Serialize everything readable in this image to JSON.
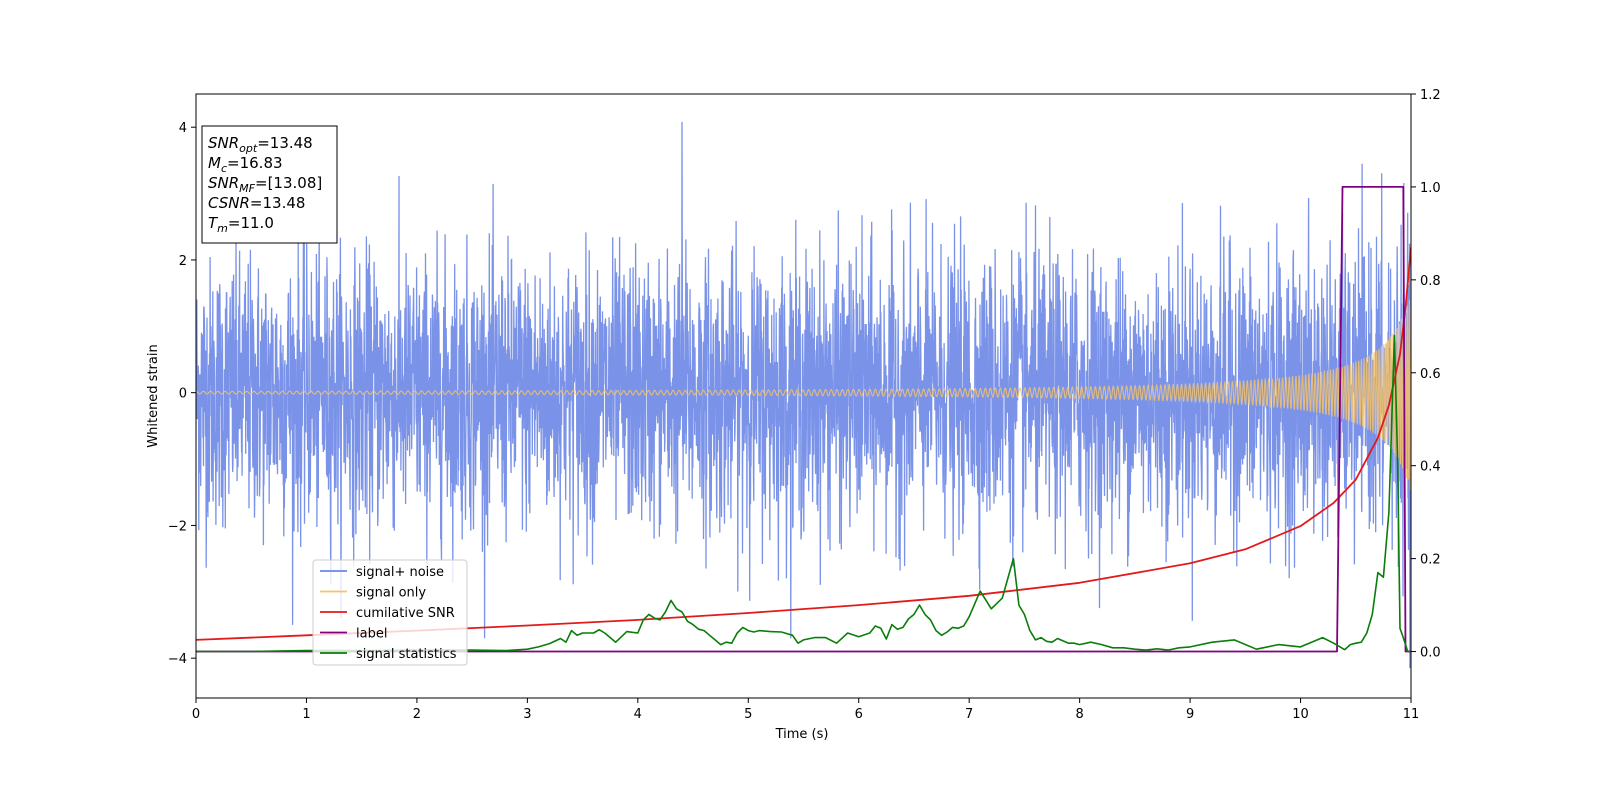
{
  "chart_data": {
    "type": "line",
    "xlabel": "Time (s)",
    "ylabel": "Whitened strain",
    "xlim": [
      0,
      11
    ],
    "ylim_left": [
      -4.6,
      4.5
    ],
    "ylim_right": [
      -0.1,
      1.2
    ],
    "x_ticks": [
      "0",
      "1",
      "2",
      "3",
      "4",
      "5",
      "6",
      "7",
      "8",
      "9",
      "10",
      "11"
    ],
    "y_ticks_left": [
      "−4",
      "−2",
      "0",
      "2",
      "4"
    ],
    "y_ticks_left_values": [
      -4,
      -2,
      0,
      2,
      4
    ],
    "y_ticks_right": [
      "0.0",
      "0.2",
      "0.4",
      "0.6",
      "0.8",
      "1.0",
      "1.2"
    ],
    "y_ticks_right_values": [
      0.0,
      0.2,
      0.4,
      0.6,
      0.8,
      1.0,
      1.2
    ],
    "legend_position": "lower-left",
    "series": [
      {
        "name": "signal+ noise",
        "color": "#6b87e6",
        "axis": "left",
        "description_values": {
          "sigma": 1.0,
          "tmax": 11.0,
          "peaks": [
            [
              4.4,
              4.08
            ],
            [
              10.95,
              3.65
            ],
            [
              10.99,
              -4.15
            ]
          ]
        }
      },
      {
        "name": "signal only",
        "color": "#f6c36a",
        "axis": "left",
        "chirp": {
          "start_amplitude": 0.02,
          "end_amplitude": 1.5,
          "merger_time": 11.0
        }
      },
      {
        "name": "cumilative SNR",
        "color": "#e11b1b",
        "axis": "right",
        "x": [
          0,
          1,
          2,
          3,
          4,
          5,
          6,
          7,
          8,
          9,
          9.5,
          10,
          10.3,
          10.5,
          10.7,
          10.8,
          10.9,
          10.95,
          11.0
        ],
        "y": [
          0.025,
          0.035,
          0.045,
          0.056,
          0.068,
          0.083,
          0.1,
          0.12,
          0.148,
          0.19,
          0.22,
          0.27,
          0.32,
          0.37,
          0.46,
          0.53,
          0.64,
          0.74,
          0.87
        ]
      },
      {
        "name": "label",
        "color": "#800080",
        "axis": "right",
        "x": [
          0,
          10.33,
          10.38,
          10.93,
          10.95,
          11.0
        ],
        "y": [
          0.0,
          0.0,
          1.0,
          1.0,
          0.0,
          0.0
        ]
      },
      {
        "name": "signal statistics",
        "color": "#0a7d0a",
        "axis": "right",
        "x": [
          0,
          0.5,
          1,
          1.5,
          2,
          2.5,
          2.8,
          3.0,
          3.1,
          3.2,
          3.3,
          3.35,
          3.4,
          3.45,
          3.5,
          3.6,
          3.65,
          3.7,
          3.75,
          3.8,
          3.9,
          4.0,
          4.05,
          4.1,
          4.15,
          4.2,
          4.25,
          4.3,
          4.35,
          4.4,
          4.45,
          4.5,
          4.55,
          4.6,
          4.65,
          4.7,
          4.75,
          4.8,
          4.85,
          4.9,
          4.95,
          5.0,
          5.05,
          5.1,
          5.2,
          5.3,
          5.4,
          5.45,
          5.5,
          5.6,
          5.7,
          5.8,
          5.9,
          6.0,
          6.1,
          6.15,
          6.2,
          6.25,
          6.3,
          6.35,
          6.4,
          6.45,
          6.5,
          6.55,
          6.6,
          6.65,
          6.7,
          6.75,
          6.8,
          6.85,
          6.9,
          6.95,
          7.0,
          7.1,
          7.2,
          7.3,
          7.4,
          7.45,
          7.5,
          7.55,
          7.6,
          7.65,
          7.7,
          7.75,
          7.8,
          7.85,
          7.9,
          7.95,
          8.0,
          8.1,
          8.2,
          8.3,
          8.4,
          8.5,
          8.6,
          8.7,
          8.8,
          8.9,
          9.0,
          9.2,
          9.4,
          9.6,
          9.8,
          10.0,
          10.2,
          10.3,
          10.4,
          10.45,
          10.5,
          10.55,
          10.6,
          10.65,
          10.7,
          10.75,
          10.8,
          10.85,
          10.88,
          10.9,
          10.93,
          10.97,
          11.0
        ],
        "y": [
          0.0,
          0.0,
          0.002,
          0.002,
          0.003,
          0.003,
          0.002,
          0.005,
          0.01,
          0.017,
          0.028,
          0.02,
          0.045,
          0.035,
          0.04,
          0.04,
          0.047,
          0.04,
          0.03,
          0.02,
          0.043,
          0.04,
          0.068,
          0.08,
          0.072,
          0.068,
          0.085,
          0.11,
          0.092,
          0.085,
          0.065,
          0.058,
          0.048,
          0.045,
          0.035,
          0.025,
          0.015,
          0.02,
          0.018,
          0.04,
          0.052,
          0.045,
          0.042,
          0.045,
          0.043,
          0.042,
          0.035,
          0.018,
          0.025,
          0.03,
          0.03,
          0.018,
          0.04,
          0.032,
          0.04,
          0.055,
          0.05,
          0.027,
          0.058,
          0.048,
          0.052,
          0.07,
          0.08,
          0.1,
          0.08,
          0.068,
          0.045,
          0.035,
          0.042,
          0.052,
          0.05,
          0.055,
          0.075,
          0.13,
          0.092,
          0.115,
          0.2,
          0.1,
          0.08,
          0.045,
          0.025,
          0.03,
          0.022,
          0.02,
          0.028,
          0.023,
          0.018,
          0.018,
          0.015,
          0.02,
          0.015,
          0.008,
          0.008,
          0.005,
          0.003,
          0.006,
          0.003,
          0.008,
          0.01,
          0.02,
          0.025,
          0.005,
          0.015,
          0.01,
          0.03,
          0.018,
          0.004,
          0.015,
          0.018,
          0.02,
          0.04,
          0.08,
          0.17,
          0.16,
          0.3,
          0.68,
          0.4,
          0.05,
          0.03,
          0.0,
          0.0
        ]
      }
    ],
    "info_box": [
      {
        "main": "SNR",
        "sub": "opt",
        "value": "=13.48"
      },
      {
        "main": "M",
        "sub": "c",
        "value": "=16.83"
      },
      {
        "main": "SNR",
        "sub": "MF",
        "value": "=[13.08]"
      },
      {
        "main": "CSNR",
        "sub": "",
        "value": "=13.48"
      },
      {
        "main": "T",
        "sub": "m",
        "value": "=11.0"
      }
    ]
  }
}
